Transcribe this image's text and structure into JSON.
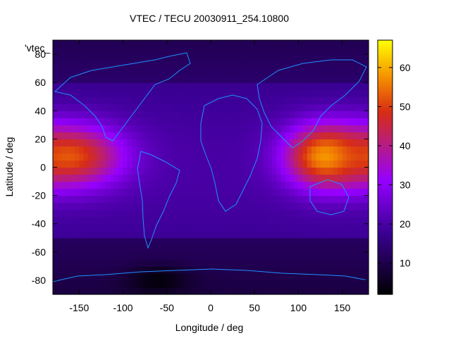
{
  "chart_data": {
    "type": "heatmap",
    "title": "VTEC / TECU 20030911_254.10800",
    "xlabel": "Longitude / deg",
    "ylabel": "Latitude / deg",
    "key_label": "'vtec_",
    "xlim": [
      -180,
      180
    ],
    "ylim": [
      -90,
      90
    ],
    "xticks": [
      -150,
      -100,
      -50,
      0,
      50,
      100,
      150
    ],
    "yticks": [
      -80,
      -60,
      -40,
      -20,
      0,
      20,
      40,
      60,
      80
    ],
    "colorbar": {
      "range": [
        2,
        67
      ],
      "ticks": [
        10,
        20,
        30,
        40,
        50,
        60
      ],
      "palette": "black-purple-red-orange-yellow"
    },
    "grid": false,
    "features": [
      {
        "name": "western equatorial anomaly",
        "lon": -160,
        "lat": 8,
        "lon_width": 60,
        "lat_width": 22,
        "value": 52
      },
      {
        "name": "eastern equatorial anomaly",
        "lon": 130,
        "lat": 8,
        "lon_width": 45,
        "lat_width": 22,
        "value": 58
      },
      {
        "name": "south pacific low",
        "lon": -60,
        "lat": -80,
        "lon_width": 35,
        "lat_width": 10,
        "value": 3
      }
    ]
  }
}
